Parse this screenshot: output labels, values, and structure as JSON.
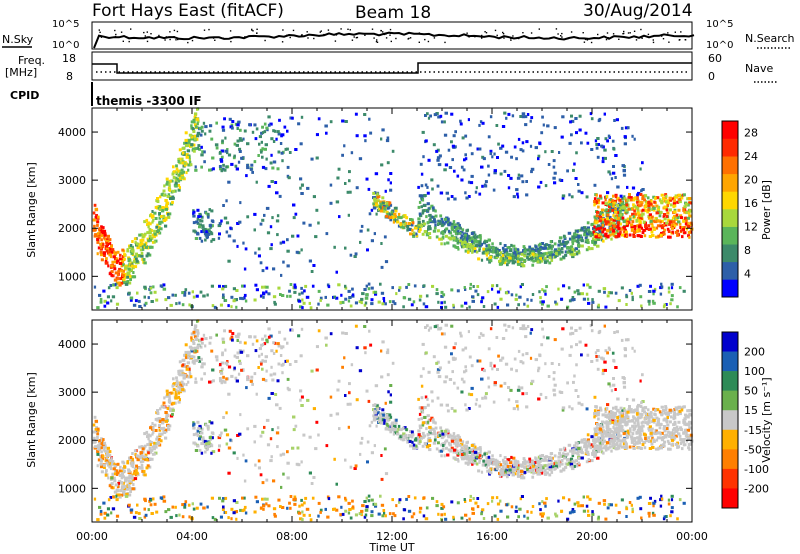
{
  "header": {
    "title": "Fort Hays East (fitACF)",
    "beam": "Beam 18",
    "date": "30/Aug/2014"
  },
  "noise_panel": {
    "left_label": "N.Sky",
    "left_ticks": [
      "10^5",
      "10^0"
    ],
    "right_label": "N.Search",
    "right_ticks": [
      "10^5",
      "10^0"
    ]
  },
  "freq_panel": {
    "left_label_1": "Freq.",
    "left_label_2": "[MHz]",
    "left_ticks": [
      "18",
      "8"
    ],
    "right_label": "Nave",
    "right_ticks": [
      "60",
      "0"
    ],
    "cpid_label": "CPID",
    "cpid_text": "themis -3300 IF"
  },
  "colors": {
    "power_scale": [
      "#0000ff",
      "#2d5fa8",
      "#3c8a6a",
      "#5ab55a",
      "#a8d83c",
      "#ffd700",
      "#ffa500",
      "#ff7000",
      "#ff2a00",
      "#ff0000"
    ],
    "velocity_scale": [
      "#0000cc",
      "#1a5fb4",
      "#2e8b57",
      "#6ab04c",
      "#a8d26a",
      "#c8c8c8",
      "#c8c8c8",
      "#ffb000",
      "#ff7f00",
      "#ff3300",
      "#ff0000"
    ]
  },
  "chart_data": [
    {
      "type": "heatmap",
      "name": "power",
      "xlabel": "",
      "ylabel": "Slant Range [km]",
      "x_ticks": [
        "00:00",
        "04:00",
        "08:00",
        "12:00",
        "16:00",
        "20:00",
        "00:00"
      ],
      "y_ticks": [
        1000,
        2000,
        3000,
        4000
      ],
      "ylim": [
        300,
        4500
      ],
      "xlim": [
        0,
        24
      ],
      "colorbar_label": "Power [dB]",
      "colorbar_ticks": [
        4,
        8,
        12,
        16,
        20,
        24,
        28
      ],
      "colorbar_range": [
        0,
        30
      ]
    },
    {
      "type": "heatmap",
      "name": "velocity",
      "xlabel": "Time UT",
      "ylabel": "Slant Range [km]",
      "x_ticks": [
        "00:00",
        "04:00",
        "08:00",
        "12:00",
        "16:00",
        "20:00",
        "00:00"
      ],
      "y_ticks": [
        1000,
        2000,
        3000,
        4000
      ],
      "ylim": [
        300,
        4500
      ],
      "xlim": [
        0,
        24
      ],
      "colorbar_label": "Velocity [m s⁻¹]",
      "colorbar_ticks": [
        "200",
        "100",
        "50",
        "15",
        "-15",
        "-50",
        "-100",
        "-200"
      ]
    }
  ]
}
